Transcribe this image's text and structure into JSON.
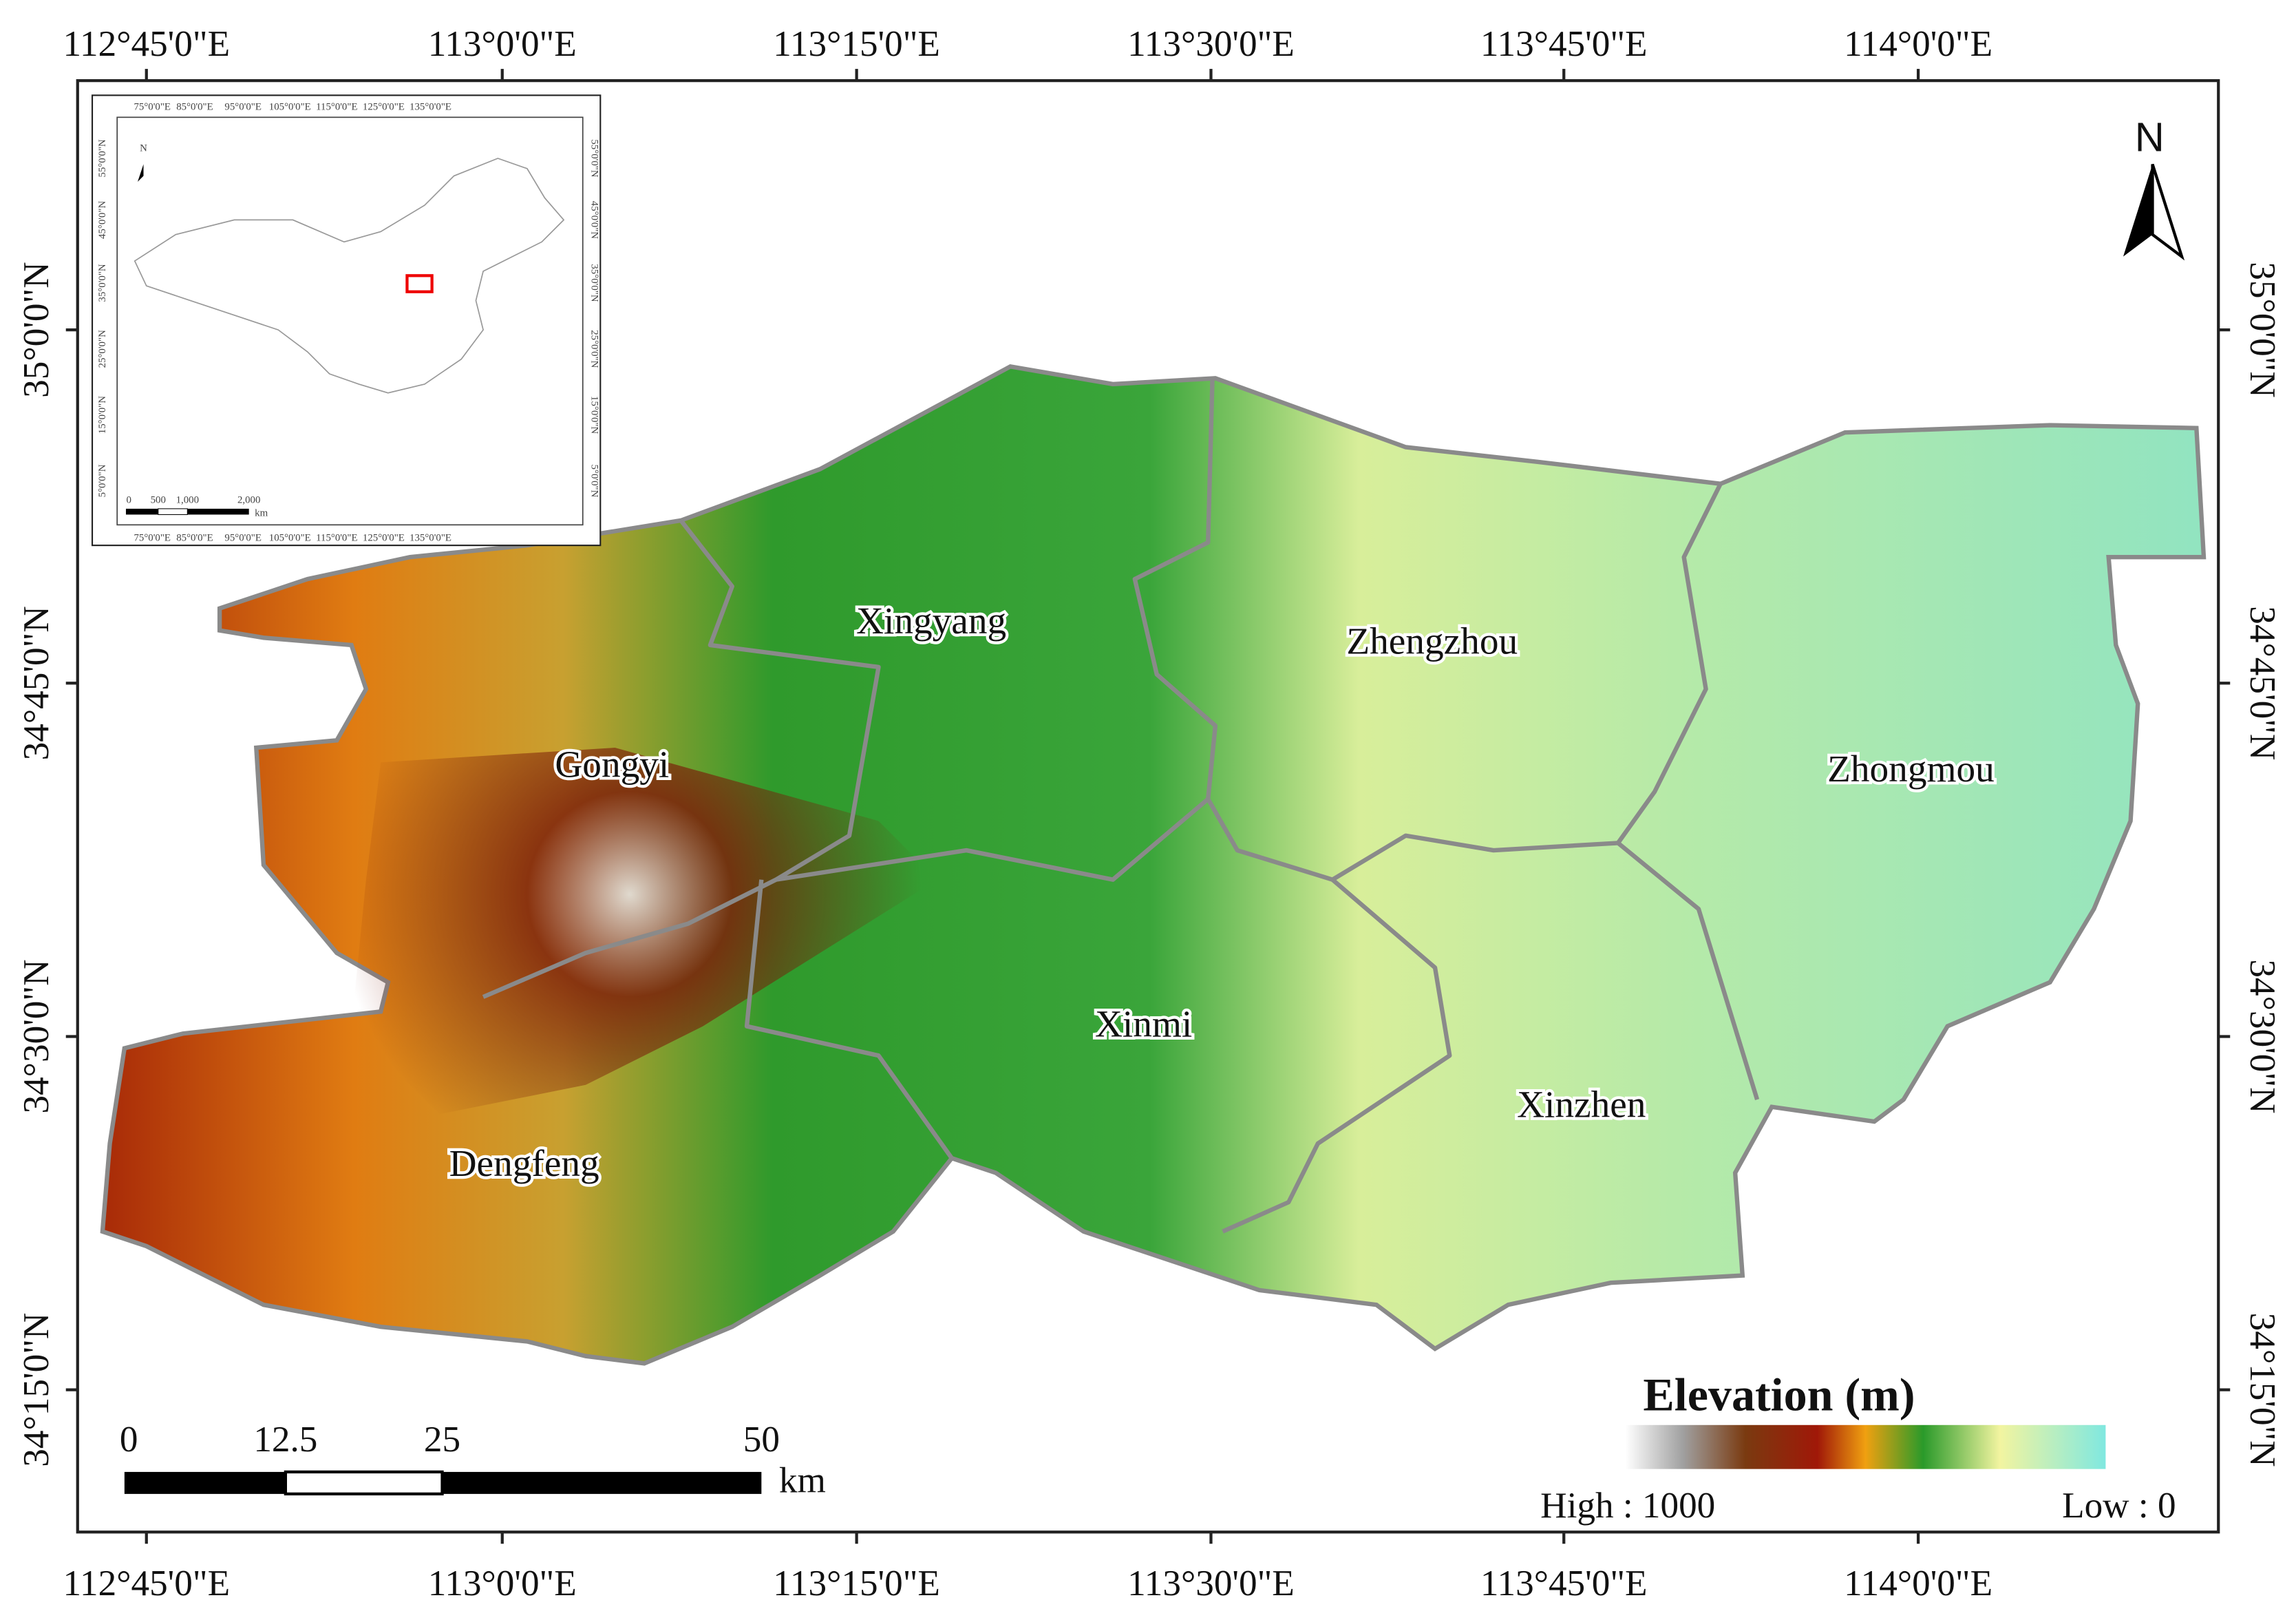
{
  "map": {
    "top_labels": [
      "112°45'0\"E",
      "113°0'0\"E",
      "113°15'0\"E",
      "113°30'0\"E",
      "113°45'0\"E",
      "114°0'0\"E"
    ],
    "bottom_labels": [
      "112°45'0\"E",
      "113°0'0\"E",
      "113°15'0\"E",
      "113°30'0\"E",
      "113°45'0\"E",
      "114°0'0\"E"
    ],
    "left_labels": [
      "35°0'0\"N",
      "34°45'0\"N",
      "34°30'0\"N",
      "34°15'0\"N"
    ],
    "right_labels": [
      "35°0'0\"N",
      "34°45'0\"N",
      "34°30'0\"N",
      "34°15'0\"N"
    ],
    "districts": [
      "Xingyang",
      "Zhengzhou",
      "Gongyi",
      "Zhongmou",
      "Xinmi",
      "Xinzhen",
      "Dengfeng"
    ],
    "north": "N",
    "legend": {
      "title": "Elevation (m)",
      "high": "High : 1000",
      "low": "Low : 0"
    },
    "scale_bar": {
      "ticks": [
        "0",
        "12.5",
        "25",
        "50"
      ],
      "unit": "km"
    },
    "inset": {
      "top_labels": [
        "75°0'0\"E",
        "85°0'0\"E",
        "95°0'0\"E",
        "105°0'0\"E",
        "115°0'0\"E",
        "125°0'0\"E",
        "135°0'0\"E"
      ],
      "left_labels": [
        "55°0'0\"N",
        "45°0'0\"N",
        "35°0'0\"N",
        "25°0'0\"N",
        "15°0'0\"N",
        "5°0'0\"N"
      ],
      "north": "N",
      "scale": [
        "0",
        "500",
        "1,000",
        "2,000"
      ],
      "unit": "km"
    }
  }
}
